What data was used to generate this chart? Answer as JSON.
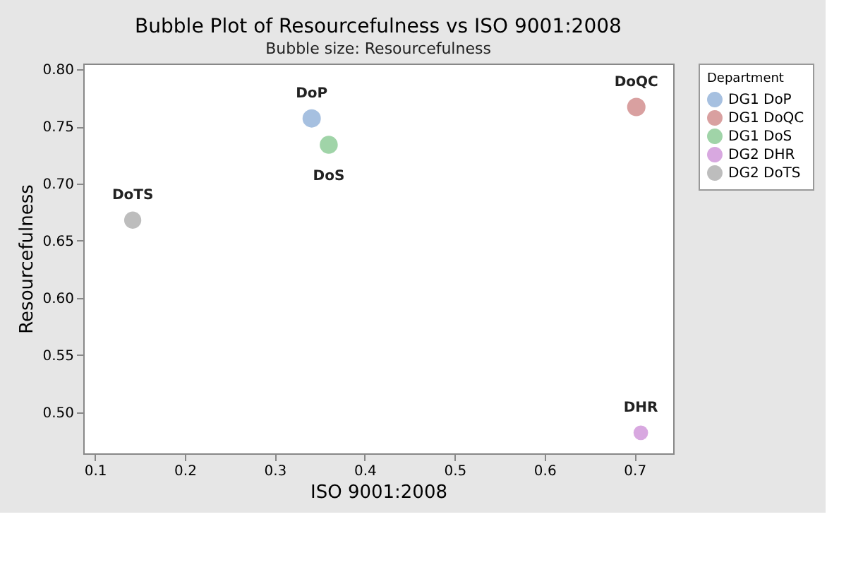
{
  "chart_data": {
    "type": "bubble",
    "title": "Bubble Plot of Resourcefulness vs ISO 9001:2008",
    "subtitle": "Bubble size: Resourcefulness",
    "xlabel": "ISO 9001:2008",
    "ylabel": "Resourcefulness",
    "legend_title": "Department",
    "legend": "right",
    "xlim": [
      0.087,
      0.743
    ],
    "xticks": [
      0.1,
      0.2,
      0.3,
      0.4,
      0.5,
      0.6,
      0.7
    ],
    "ylim": [
      0.464,
      0.805
    ],
    "yticks": [
      {
        "value": 0.5,
        "label": "0.50"
      },
      0.55,
      {
        "value": 0.6,
        "label": "0.60"
      },
      0.65,
      {
        "value": 0.7,
        "label": "0.70"
      },
      0.75,
      {
        "value": 0.8,
        "label": "0.80"
      }
    ],
    "grid": false,
    "series": [
      {
        "name": "DG1 DoP",
        "color": "#a6c0e0",
        "x": [
          0.341
        ],
        "values": [
          0.757
        ],
        "sizes": [
          0.99
        ]
      },
      {
        "name": "DG1 DoQC",
        "color": "#d9a0a0",
        "x": [
          0.702
        ],
        "values": [
          0.767
        ],
        "sizes": [
          1
        ]
      },
      {
        "name": "DG1 DoS",
        "color": "#a0d4a8",
        "x": [
          0.36
        ],
        "values": [
          0.734
        ],
        "sizes": [
          0.96
        ]
      },
      {
        "name": "DG2 DHR",
        "color": "#d8a8e0",
        "x": [
          0.707
        ],
        "values": [
          0.482
        ],
        "sizes": [
          0.63
        ]
      },
      {
        "name": "DG2 DoTS",
        "color": "#bdbdbd",
        "x": [
          0.142
        ],
        "values": [
          0.668
        ],
        "sizes": [
          0.87
        ]
      }
    ],
    "annotations": [
      {
        "text": "DoP",
        "x": 0.341,
        "y": 0.757
      },
      {
        "text": "DoQC",
        "x": 0.702,
        "y": 0.767
      },
      {
        "text": "DoS",
        "x": 0.36,
        "y": 0.734
      },
      {
        "text": "DHR",
        "x": 0.707,
        "y": 0.482
      },
      {
        "text": "DoTS",
        "x": 0.142,
        "y": 0.668
      }
    ]
  }
}
